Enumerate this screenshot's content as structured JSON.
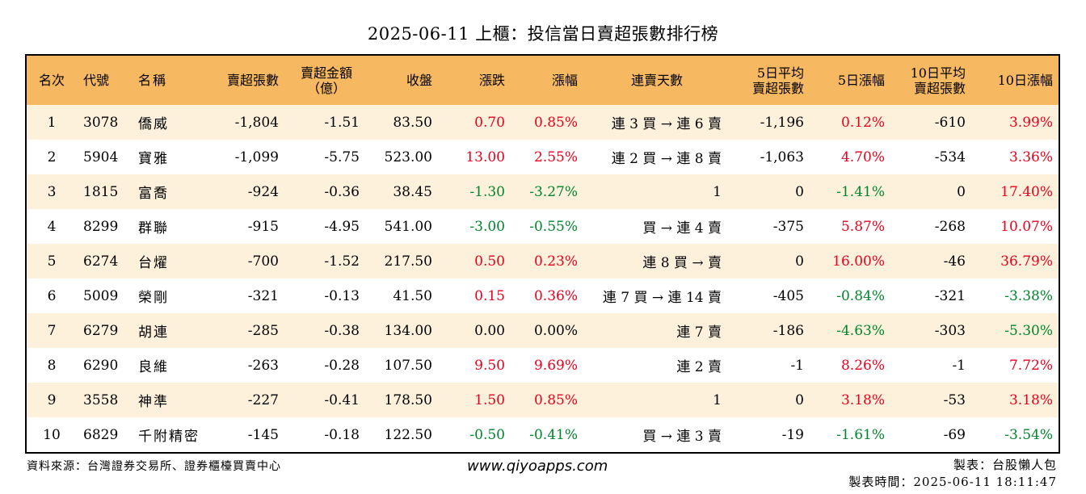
{
  "title": "2025-06-11 上櫃：投信當日賣超張數排行榜",
  "colors": {
    "header_bg": "#f6b861",
    "row_alt_bg": "#fdf1dc",
    "positive": "#e8001c",
    "negative": "#00852c"
  },
  "columns": [
    {
      "key": "rank",
      "label": "名次"
    },
    {
      "key": "code",
      "label": "代號"
    },
    {
      "key": "name",
      "label": "名稱"
    },
    {
      "key": "sell_lots",
      "label": "賣超張數"
    },
    {
      "key": "sell_amount",
      "label": "賣超金額\n（億）"
    },
    {
      "key": "close",
      "label": "收盤"
    },
    {
      "key": "change",
      "label": "漲跌"
    },
    {
      "key": "change_pct",
      "label": "漲幅"
    },
    {
      "key": "consecutive",
      "label": "連賣天數"
    },
    {
      "key": "avg5",
      "label": "5日平均\n賣超張數"
    },
    {
      "key": "pct5",
      "label": "5日漲幅"
    },
    {
      "key": "avg10",
      "label": "10日平均\n賣超張數"
    },
    {
      "key": "pct10",
      "label": "10日漲幅"
    }
  ],
  "rows": [
    {
      "rank": "1",
      "code": "3078",
      "name": "僑威",
      "sell_lots": "-1,804",
      "sell_amount": "-1.51",
      "close": "83.50",
      "change": "0.70",
      "change_pct": "0.85%",
      "consecutive": "連 3 買 → 連 6 賣",
      "avg5": "-1,196",
      "pct5": "0.12%",
      "avg10": "-610",
      "pct10": "3.99%"
    },
    {
      "rank": "2",
      "code": "5904",
      "name": "寶雅",
      "sell_lots": "-1,099",
      "sell_amount": "-5.75",
      "close": "523.00",
      "change": "13.00",
      "change_pct": "2.55%",
      "consecutive": "連 2 買 → 連 8 賣",
      "avg5": "-1,063",
      "pct5": "4.70%",
      "avg10": "-534",
      "pct10": "3.36%"
    },
    {
      "rank": "3",
      "code": "1815",
      "name": "富喬",
      "sell_lots": "-924",
      "sell_amount": "-0.36",
      "close": "38.45",
      "change": "-1.30",
      "change_pct": "-3.27%",
      "consecutive": "1",
      "avg5": "0",
      "pct5": "-1.41%",
      "avg10": "0",
      "pct10": "17.40%"
    },
    {
      "rank": "4",
      "code": "8299",
      "name": "群聯",
      "sell_lots": "-915",
      "sell_amount": "-4.95",
      "close": "541.00",
      "change": "-3.00",
      "change_pct": "-0.55%",
      "consecutive": "買 → 連 4 賣",
      "avg5": "-375",
      "pct5": "5.87%",
      "avg10": "-268",
      "pct10": "10.07%"
    },
    {
      "rank": "5",
      "code": "6274",
      "name": "台燿",
      "sell_lots": "-700",
      "sell_amount": "-1.52",
      "close": "217.50",
      "change": "0.50",
      "change_pct": "0.23%",
      "consecutive": "連 8 買 → 賣",
      "avg5": "0",
      "pct5": "16.00%",
      "avg10": "-46",
      "pct10": "36.79%"
    },
    {
      "rank": "6",
      "code": "5009",
      "name": "榮剛",
      "sell_lots": "-321",
      "sell_amount": "-0.13",
      "close": "41.50",
      "change": "0.15",
      "change_pct": "0.36%",
      "consecutive": "連 7 買 → 連 14 賣",
      "avg5": "-405",
      "pct5": "-0.84%",
      "avg10": "-321",
      "pct10": "-3.38%"
    },
    {
      "rank": "7",
      "code": "6279",
      "name": "胡連",
      "sell_lots": "-285",
      "sell_amount": "-0.38",
      "close": "134.00",
      "change": "0.00",
      "change_pct": "0.00%",
      "consecutive": "連 7 賣",
      "avg5": "-186",
      "pct5": "-4.63%",
      "avg10": "-303",
      "pct10": "-5.30%"
    },
    {
      "rank": "8",
      "code": "6290",
      "name": "良維",
      "sell_lots": "-263",
      "sell_amount": "-0.28",
      "close": "107.50",
      "change": "9.50",
      "change_pct": "9.69%",
      "consecutive": "連 2 賣",
      "avg5": "-1",
      "pct5": "8.26%",
      "avg10": "-1",
      "pct10": "7.72%"
    },
    {
      "rank": "9",
      "code": "3558",
      "name": "神準",
      "sell_lots": "-227",
      "sell_amount": "-0.41",
      "close": "178.50",
      "change": "1.50",
      "change_pct": "0.85%",
      "consecutive": "1",
      "avg5": "0",
      "pct5": "3.18%",
      "avg10": "-53",
      "pct10": "3.18%"
    },
    {
      "rank": "10",
      "code": "6829",
      "name": "千附精密",
      "sell_lots": "-145",
      "sell_amount": "-0.18",
      "close": "122.50",
      "change": "-0.50",
      "change_pct": "-0.41%",
      "consecutive": "買 → 連 3 賣",
      "avg5": "-19",
      "pct5": "-1.61%",
      "avg10": "-69",
      "pct10": "-3.54%"
    }
  ],
  "footer": {
    "source": "資料來源：台灣證券交易所、證券櫃檯買賣中心",
    "website": "www.qiyoapps.com",
    "author": "製表：台股懶人包",
    "made_time": "製表時間：2025-06-11 18:11:47"
  }
}
